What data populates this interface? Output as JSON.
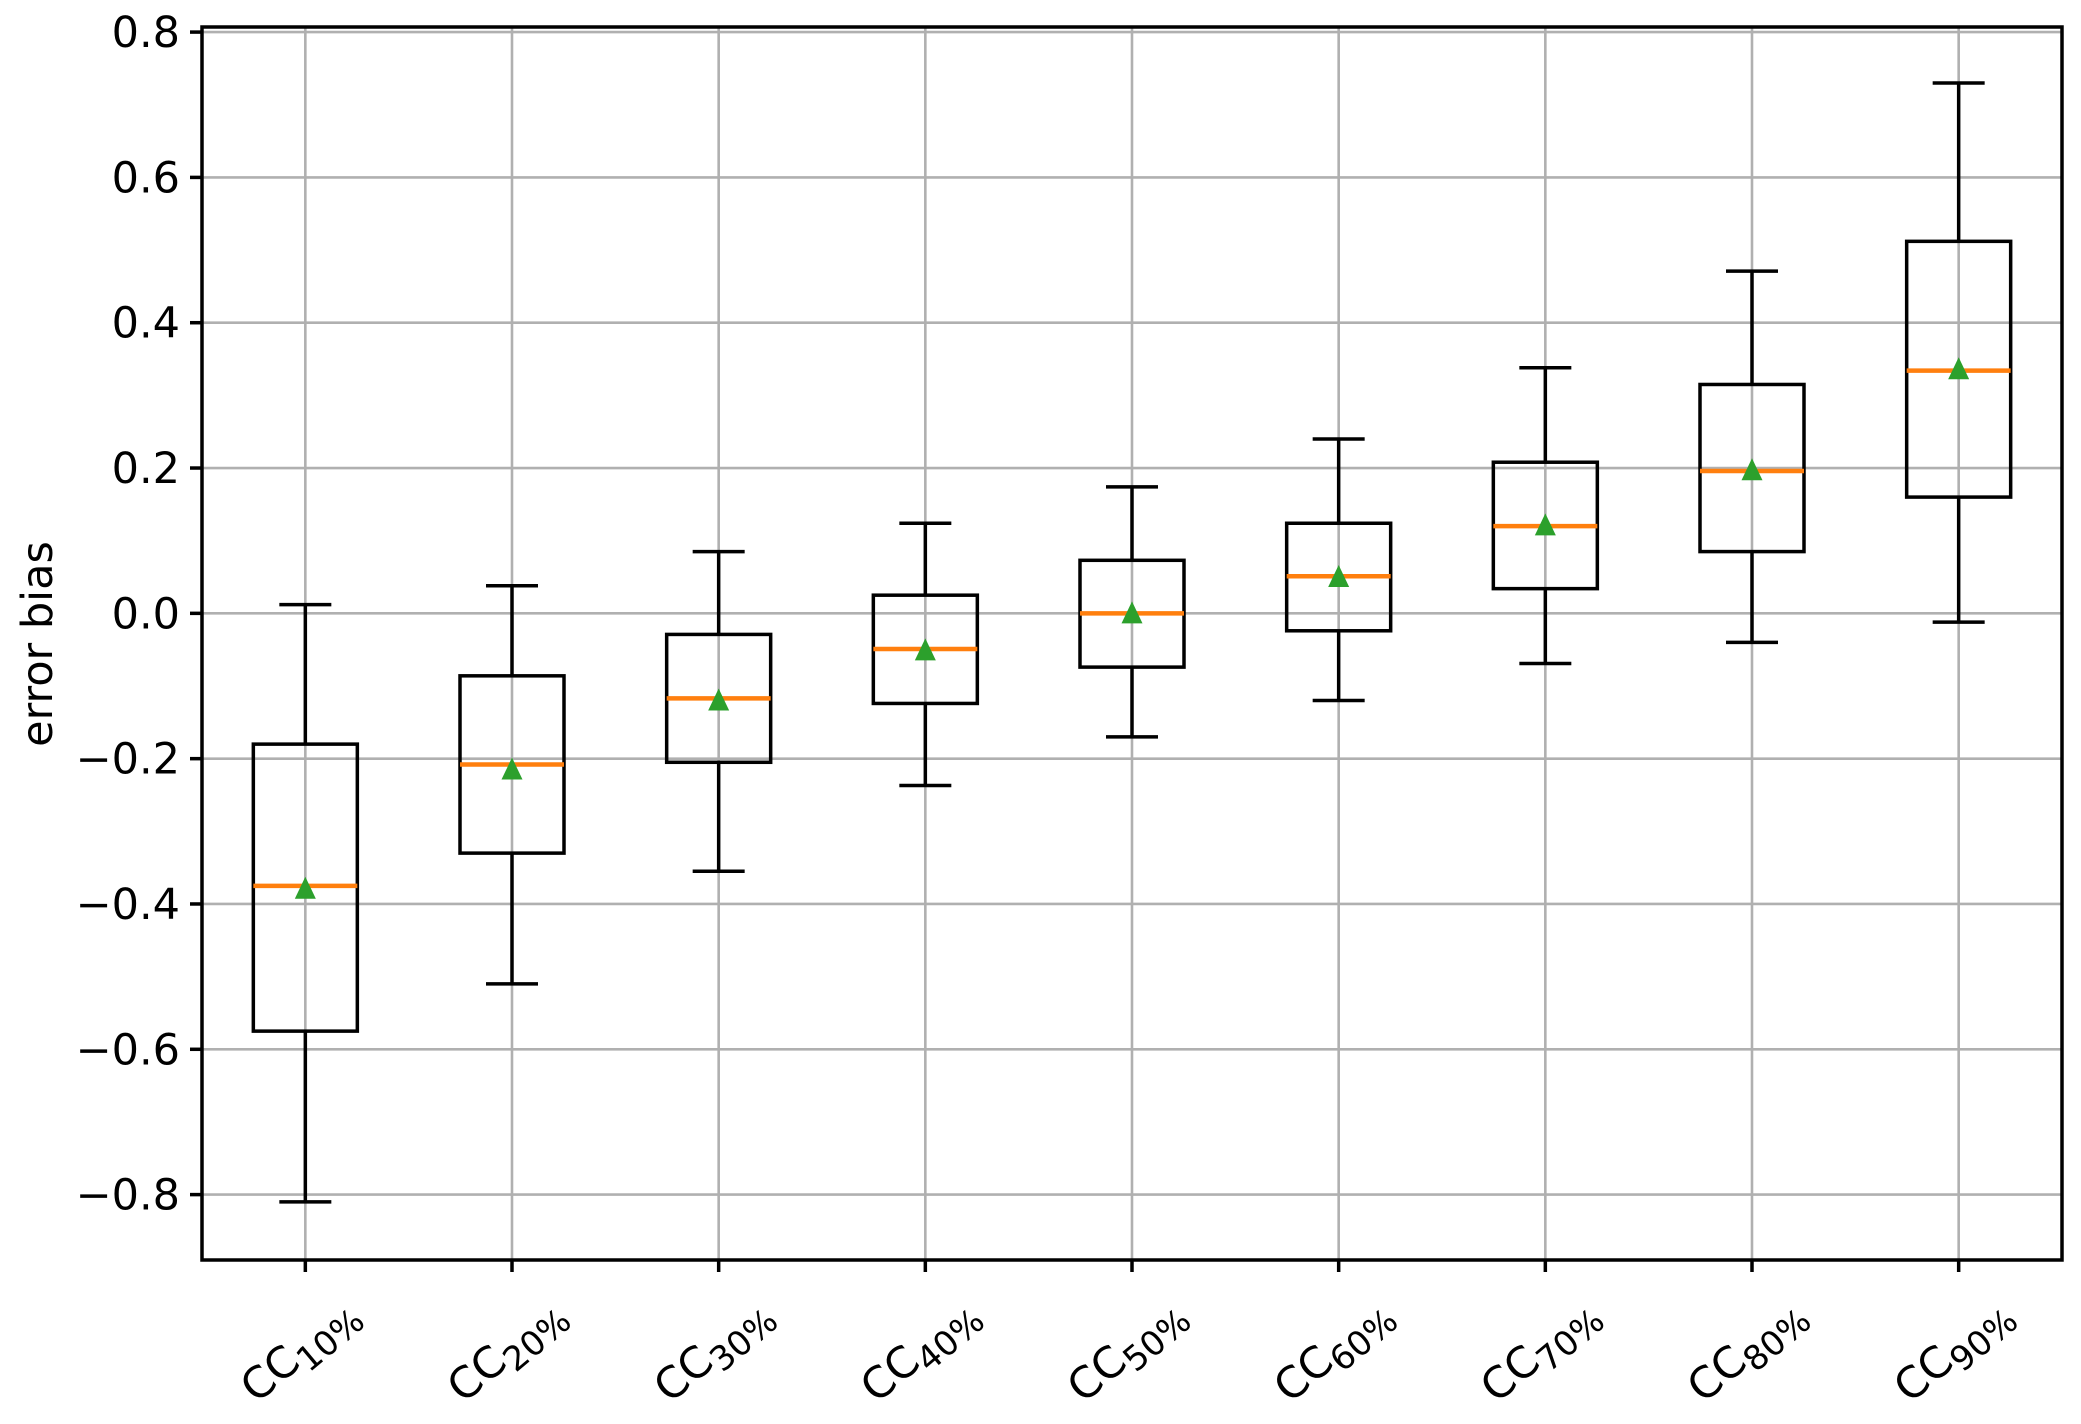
{
  "chart_data": {
    "type": "boxplot",
    "title": "",
    "xlabel": "",
    "ylabel": "error bias",
    "ylim": [
      -0.89,
      0.807
    ],
    "yticks": [
      -0.8,
      -0.6,
      -0.4,
      -0.2,
      0.0,
      0.2,
      0.4,
      0.6,
      0.8
    ],
    "ytick_labels": [
      "−0.8",
      "−0.6",
      "−0.4",
      "−0.2",
      "0.0",
      "0.2",
      "0.4",
      "0.6",
      "0.8"
    ],
    "grid": true,
    "legend_position": "none",
    "xtick_label_rotation_deg": 40,
    "mean_marker_shape": "triangle-up",
    "categories": [
      {
        "base": "CC",
        "sub": "10%"
      },
      {
        "base": "CC",
        "sub": "20%"
      },
      {
        "base": "CC",
        "sub": "30%"
      },
      {
        "base": "CC",
        "sub": "40%"
      },
      {
        "base": "CC",
        "sub": "50%"
      },
      {
        "base": "CC",
        "sub": "60%"
      },
      {
        "base": "CC",
        "sub": "70%"
      },
      {
        "base": "CC",
        "sub": "80%"
      },
      {
        "base": "CC",
        "sub": "90%"
      }
    ],
    "boxes": [
      {
        "label": "CC10%",
        "whislo": -0.81,
        "q1": -0.575,
        "med": -0.375,
        "mean": -0.379,
        "q3": -0.18,
        "whishi": 0.012
      },
      {
        "label": "CC20%",
        "whislo": -0.51,
        "q1": -0.33,
        "med": -0.208,
        "mean": -0.215,
        "q3": -0.086,
        "whishi": 0.038
      },
      {
        "label": "CC30%",
        "whislo": -0.355,
        "q1": -0.205,
        "med": -0.117,
        "mean": -0.12,
        "q3": -0.029,
        "whishi": 0.085
      },
      {
        "label": "CC40%",
        "whislo": -0.237,
        "q1": -0.124,
        "med": -0.049,
        "mean": -0.051,
        "q3": 0.025,
        "whishi": 0.124
      },
      {
        "label": "CC50%",
        "whislo": -0.17,
        "q1": -0.074,
        "med": 0.0,
        "mean": 0.0,
        "q3": 0.073,
        "whishi": 0.174
      },
      {
        "label": "CC60%",
        "whislo": -0.12,
        "q1": -0.024,
        "med": 0.051,
        "mean": 0.05,
        "q3": 0.124,
        "whishi": 0.24
      },
      {
        "label": "CC70%",
        "whislo": -0.069,
        "q1": 0.034,
        "med": 0.12,
        "mean": 0.121,
        "q3": 0.208,
        "whishi": 0.338
      },
      {
        "label": "CC80%",
        "whislo": -0.04,
        "q1": 0.085,
        "med": 0.196,
        "mean": 0.197,
        "q3": 0.315,
        "whishi": 0.471
      },
      {
        "label": "CC90%",
        "whislo": -0.012,
        "q1": 0.16,
        "med": 0.334,
        "mean": 0.336,
        "q3": 0.512,
        "whishi": 0.73
      }
    ],
    "colors": {
      "median": "#ff7f0e",
      "mean_marker": "#2ca02c",
      "box_stroke": "#000000",
      "whisker": "#000000",
      "grid": "#b0b0b0",
      "spine": "#000000",
      "tick_label": "#000000",
      "background": "#ffffff"
    }
  }
}
